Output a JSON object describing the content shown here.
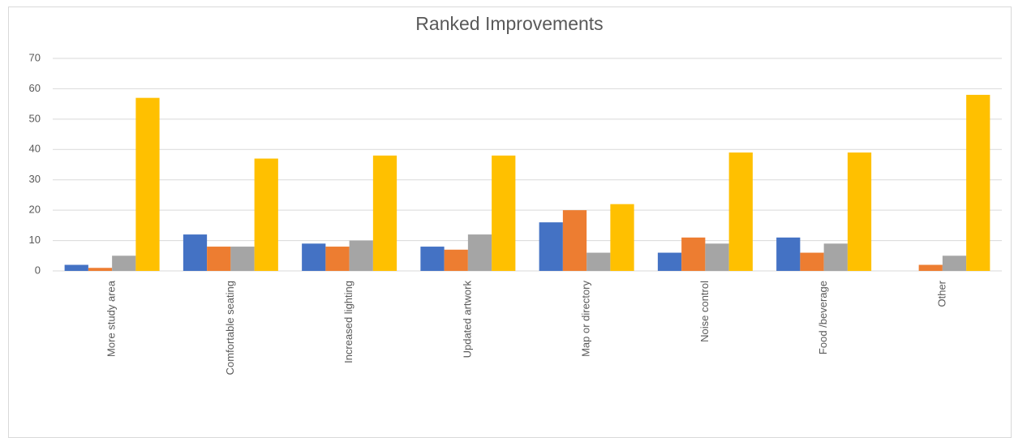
{
  "chart_data": {
    "type": "bar",
    "title": "Ranked Improvements",
    "categories": [
      "More study area",
      "Comfortable seating",
      "Increased lighting",
      "Updated artwork",
      "Map or directory",
      "Noise control",
      "Food /beverage",
      "Other"
    ],
    "series": [
      {
        "color": "#4472c4",
        "values": [
          2,
          12,
          9,
          8,
          16,
          6,
          11,
          0
        ]
      },
      {
        "color": "#ed7d31",
        "values": [
          1,
          8,
          8,
          7,
          20,
          11,
          6,
          2
        ]
      },
      {
        "color": "#a5a5a5",
        "values": [
          5,
          8,
          10,
          12,
          6,
          9,
          9,
          5
        ]
      },
      {
        "color": "#ffc000",
        "values": [
          57,
          37,
          38,
          38,
          22,
          39,
          39,
          58
        ]
      }
    ],
    "ylim": [
      0,
      70
    ],
    "yticks": [
      0,
      10,
      20,
      30,
      40,
      50,
      60,
      70
    ],
    "grid": true
  }
}
